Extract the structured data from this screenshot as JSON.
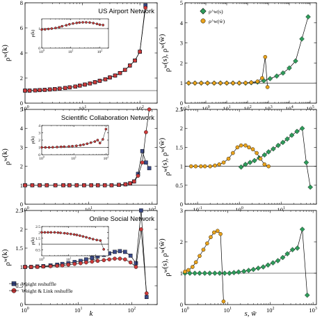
{
  "figure": {
    "x_axis_label_left": "k",
    "x_axis_label_right": "s, w̄",
    "legend_left": [
      {
        "label": "Weight reshuffle",
        "marker": "square",
        "color": "#3b4a86"
      },
      {
        "label": "Weight & Link reshuffle",
        "marker": "circle",
        "color": "#cc3a3a"
      }
    ],
    "legend_right": [
      {
        "label": "ρ^w(s)",
        "marker": "diamond",
        "color": "#2e9b5a"
      },
      {
        "label": "ρ^w(w̄)",
        "marker": "circle",
        "color": "#e8a21d"
      }
    ]
  },
  "chart_data": [
    {
      "type": "line",
      "row": 0,
      "col": 0,
      "title": "US Airport Network",
      "ylabel": "ρ^w(k)",
      "xlabel": "",
      "xscale": "log",
      "xlim": [
        1,
        200
      ],
      "xticks": [
        1,
        10,
        100
      ],
      "ylim": [
        0,
        8
      ],
      "yticks": [
        0,
        2,
        4,
        6,
        8
      ],
      "hline": 1,
      "inset": {
        "ylabel": "ρ(k)",
        "xscale": "log",
        "xlim": [
          1,
          200
        ],
        "xticks": [
          1,
          10,
          100
        ],
        "ylim": [
          0,
          1.5
        ],
        "yticks": [
          0,
          1
        ],
        "hline": 1,
        "series": [
          {
            "marker": "circle",
            "color": "#cc3a3a",
            "x": [
              1,
              1.3,
              1.7,
              2.2,
              3,
              4,
              5,
              7,
              9,
              12,
              16,
              20,
              26,
              34,
              45,
              60,
              80,
              100,
              130
            ],
            "y": [
              0.95,
              0.96,
              0.98,
              1.0,
              1.03,
              1.07,
              1.12,
              1.17,
              1.22,
              1.26,
              1.29,
              1.31,
              1.32,
              1.32,
              1.31,
              1.28,
              1.24,
              1.2,
              1.18
            ]
          }
        ]
      },
      "series": [
        {
          "name": "Weight reshuffle",
          "marker": "square",
          "color": "#3b4a86",
          "x": [
            1,
            1.2,
            1.5,
            1.8,
            2.2,
            2.7,
            3.3,
            4,
            5,
            6,
            7.5,
            9,
            11,
            13.5,
            16.5,
            20,
            25,
            30,
            37,
            45,
            55,
            67,
            82,
            100,
            125
          ],
          "y": [
            1.0,
            1.0,
            1.02,
            1.04,
            1.06,
            1.09,
            1.12,
            1.16,
            1.21,
            1.26,
            1.32,
            1.4,
            1.48,
            1.57,
            1.67,
            1.78,
            1.9,
            2.05,
            2.2,
            2.4,
            2.65,
            3.0,
            3.4,
            4.1,
            7.8
          ]
        },
        {
          "name": "Weight & Link reshuffle",
          "marker": "circle",
          "color": "#cc3a3a",
          "x": [
            1,
            1.2,
            1.5,
            1.8,
            2.2,
            2.7,
            3.3,
            4,
            5,
            6,
            7.5,
            9,
            11,
            13.5,
            16.5,
            20,
            25,
            30,
            37,
            45,
            55,
            67,
            82,
            100,
            125
          ],
          "y": [
            1.0,
            1.0,
            1.02,
            1.04,
            1.06,
            1.09,
            1.12,
            1.16,
            1.21,
            1.26,
            1.32,
            1.4,
            1.48,
            1.57,
            1.67,
            1.78,
            1.9,
            2.05,
            2.2,
            2.4,
            2.65,
            3.0,
            3.4,
            4.1,
            7.6
          ]
        }
      ]
    },
    {
      "type": "line",
      "row": 0,
      "col": 1,
      "title": "",
      "ylabel": "ρ^w(s), ρ^w(w̄)",
      "xlabel": "",
      "xscale": "log",
      "xlim": [
        0.1,
        200000
      ],
      "xticks": [
        0.1,
        1,
        10,
        100,
        1000,
        10000,
        100000
      ],
      "ylim": [
        0,
        5
      ],
      "yticks": [
        0,
        1,
        2,
        3,
        4,
        5
      ],
      "hline": 1,
      "series": [
        {
          "name": "ρ^w(s)",
          "marker": "diamond",
          "color": "#2e9b5a",
          "x": [
            0.15,
            0.3,
            0.6,
            1.2,
            2.5,
            5,
            10,
            20,
            40,
            80,
            150,
            300,
            600,
            1200,
            2500,
            5000,
            10000,
            20000,
            40000,
            80000
          ],
          "y": [
            1.0,
            1.0,
            1.0,
            1.0,
            1.0,
            1.0,
            1.0,
            1.0,
            1.0,
            1.0,
            1.02,
            1.05,
            1.12,
            1.22,
            1.35,
            1.5,
            1.75,
            2.1,
            3.2,
            4.3
          ]
        },
        {
          "name": "ρ^w(w̄)",
          "marker": "circle",
          "color": "#e8a21d",
          "x": [
            0.15,
            0.3,
            0.6,
            1.2,
            2.5,
            5,
            10,
            20,
            40,
            80,
            150,
            300,
            500,
            700,
            900
          ],
          "y": [
            1.0,
            1.0,
            1.0,
            1.0,
            1.0,
            1.0,
            1.0,
            1.0,
            1.0,
            1.01,
            1.03,
            1.08,
            1.25,
            2.3,
            0.8
          ]
        }
      ]
    },
    {
      "type": "line",
      "row": 1,
      "col": 0,
      "title": "Scientific Collaboration Network",
      "ylabel": "ρ^w(k)",
      "xlabel": "",
      "xscale": "log",
      "xlim": [
        1,
        120
      ],
      "xticks": [
        1,
        10,
        100
      ],
      "ylim": [
        0,
        5
      ],
      "yticks": [
        0,
        1,
        2,
        3,
        4,
        5
      ],
      "hline": 1,
      "inset": {
        "ylabel": "ρ(k)",
        "xscale": "log",
        "xlim": [
          1,
          120
        ],
        "xticks": [
          1,
          10,
          100
        ],
        "ylim": [
          0,
          4
        ],
        "yticks": [
          0,
          1,
          2,
          3,
          4
        ],
        "hline": 1,
        "series": [
          {
            "marker": "circle",
            "color": "#cc3a3a",
            "x": [
              1,
              1.3,
              1.7,
              2.2,
              3,
              4,
              5,
              7,
              9,
              12,
              16,
              20,
              26,
              34,
              45,
              55,
              65,
              80,
              100
            ],
            "y": [
              1.0,
              1.0,
              1.0,
              1.02,
              1.05,
              1.08,
              1.1,
              1.13,
              1.17,
              1.22,
              1.3,
              1.38,
              1.5,
              1.65,
              1.8,
              2.0,
              1.6,
              2.1,
              3.5
            ]
          }
        ]
      },
      "series": [
        {
          "name": "Weight reshuffle",
          "marker": "square",
          "color": "#3b4a86",
          "x": [
            1,
            1.3,
            1.7,
            2.2,
            3,
            4,
            5,
            6.5,
            8.5,
            11,
            14,
            18,
            23,
            30,
            38,
            45,
            52,
            60,
            70,
            80,
            90
          ],
          "y": [
            1.0,
            1.0,
            1.0,
            1.0,
            1.0,
            1.0,
            1.0,
            1.0,
            1.0,
            1.0,
            1.0,
            1.0,
            1.0,
            1.02,
            1.05,
            1.1,
            1.2,
            1.6,
            2.8,
            2.2,
            1.9
          ]
        },
        {
          "name": "Weight & Link reshuffle",
          "marker": "circle",
          "color": "#cc3a3a",
          "x": [
            1,
            1.3,
            1.7,
            2.2,
            3,
            4,
            5,
            6.5,
            8.5,
            11,
            14,
            18,
            23,
            30,
            38,
            45,
            52,
            60,
            70,
            80,
            90
          ],
          "y": [
            1.0,
            1.0,
            1.0,
            1.0,
            1.0,
            1.0,
            1.0,
            1.0,
            1.0,
            1.0,
            1.0,
            1.0,
            1.0,
            1.02,
            1.05,
            1.1,
            1.2,
            1.5,
            2.2,
            3.8,
            5.0
          ]
        }
      ]
    },
    {
      "type": "line",
      "row": 1,
      "col": 1,
      "title": "",
      "ylabel": "ρ^w(s), ρ^w(w̄)",
      "xlabel": "",
      "xscale": "log",
      "xlim": [
        0.05,
        70
      ],
      "xticks": [
        0.1,
        1,
        10
      ],
      "ylim": [
        0,
        2.5
      ],
      "yticks": [
        0,
        0.5,
        1,
        1.5,
        2,
        2.5
      ],
      "hline": 1,
      "series": [
        {
          "name": "ρ^w(s)",
          "marker": "diamond",
          "color": "#2e9b5a",
          "x": [
            1.1,
            1.4,
            1.8,
            2.3,
            3,
            4,
            5,
            6.5,
            8.5,
            11,
            14,
            18,
            24,
            32,
            40,
            50
          ],
          "y": [
            0.98,
            1.05,
            1.1,
            1.15,
            1.22,
            1.3,
            1.38,
            1.46,
            1.55,
            1.63,
            1.72,
            1.82,
            1.92,
            2.0,
            1.1,
            0.45
          ]
        },
        {
          "name": "ρ^w(w̄)",
          "marker": "circle",
          "color": "#e8a21d",
          "x": [
            0.07,
            0.09,
            0.12,
            0.15,
            0.2,
            0.26,
            0.33,
            0.42,
            0.55,
            0.7,
            0.9,
            1.1,
            1.4,
            1.7,
            2.1,
            2.6,
            3.2,
            4,
            5
          ],
          "y": [
            1.0,
            1.0,
            1.0,
            1.0,
            1.0,
            1.02,
            1.05,
            1.1,
            1.2,
            1.35,
            1.5,
            1.55,
            1.55,
            1.5,
            1.45,
            1.35,
            1.2,
            1.05,
            1.0
          ]
        }
      ]
    },
    {
      "type": "line",
      "row": 2,
      "col": 0,
      "title": "Online Social Network",
      "ylabel": "ρ^w(k)",
      "xlabel": "k",
      "xscale": "log",
      "xlim": [
        1,
        300
      ],
      "xticks": [
        1,
        10,
        100
      ],
      "ylim": [
        0,
        2.5
      ],
      "yticks": [
        0,
        0.5,
        1,
        1.5,
        2,
        2.5
      ],
      "hline": 1,
      "inset": {
        "ylabel": "ρ(k)",
        "xscale": "log",
        "xlim": [
          1,
          300
        ],
        "xticks": [
          1,
          10,
          100
        ],
        "ylim": [
          0,
          2.5
        ],
        "yticks": [
          0.5,
          1,
          1.5,
          2,
          2.5
        ],
        "hline": 1,
        "series": [
          {
            "marker": "circle",
            "color": "#cc3a3a",
            "x": [
              1,
              1.3,
              1.7,
              2.2,
              3,
              4,
              5,
              7,
              9,
              12,
              16,
              20,
              26,
              34,
              45,
              60,
              80,
              110,
              150,
              200
            ],
            "y": [
              2.0,
              2.0,
              2.0,
              2.0,
              2.0,
              1.98,
              1.96,
              1.93,
              1.9,
              1.86,
              1.82,
              1.78,
              1.72,
              1.65,
              1.58,
              1.5,
              1.42,
              1.35,
              1.3,
              0.55
            ]
          }
        ]
      },
      "series": [
        {
          "name": "Weight reshuffle",
          "marker": "square",
          "color": "#3b4a86",
          "x": [
            1,
            1.3,
            1.7,
            2.2,
            3,
            4,
            5,
            6.5,
            8.5,
            11,
            14,
            18,
            23,
            30,
            38,
            48,
            60,
            75,
            95,
            120,
            150,
            190
          ],
          "y": [
            1.0,
            1.0,
            1.01,
            1.02,
            1.04,
            1.06,
            1.08,
            1.1,
            1.13,
            1.16,
            1.2,
            1.24,
            1.28,
            1.32,
            1.36,
            1.4,
            1.42,
            1.4,
            1.3,
            1.1,
            2.5,
            0.2
          ]
        },
        {
          "name": "Weight & Link reshuffle",
          "marker": "circle",
          "color": "#cc3a3a",
          "x": [
            1,
            1.3,
            1.7,
            2.2,
            3,
            4,
            5,
            6.5,
            8.5,
            11,
            14,
            18,
            23,
            30,
            38,
            48,
            60,
            75,
            95,
            120,
            150,
            190
          ],
          "y": [
            1.0,
            1.0,
            1.0,
            1.01,
            1.02,
            1.03,
            1.04,
            1.06,
            1.08,
            1.1,
            1.12,
            1.14,
            1.16,
            1.18,
            1.2,
            1.22,
            1.22,
            1.2,
            1.12,
            1.0,
            2.0,
            0.3
          ]
        }
      ]
    },
    {
      "type": "line",
      "row": 2,
      "col": 1,
      "title": "",
      "ylabel": "ρ^w(s), ρ^w(w̄)",
      "xlabel": "s, w̄",
      "xscale": "log",
      "xlim": [
        1,
        1200
      ],
      "xticks": [
        1,
        10,
        100,
        1000
      ],
      "ylim": [
        0,
        3
      ],
      "yticks": [
        0,
        1,
        2,
        3
      ],
      "hline": 1,
      "series": [
        {
          "name": "ρ^w(s)",
          "marker": "diamond",
          "color": "#2e9b5a",
          "x": [
            1,
            1.3,
            1.7,
            2.2,
            2.9,
            3.8,
            5,
            6.5,
            8.5,
            11,
            14,
            18,
            24,
            31,
            40,
            52,
            68,
            88,
            115,
            150,
            195,
            250,
            330,
            430,
            560,
            730
          ],
          "y": [
            1.0,
            1.0,
            1.0,
            1.0,
            1.0,
            1.0,
            1.0,
            1.0,
            1.0,
            1.0,
            1.02,
            1.04,
            1.06,
            1.09,
            1.12,
            1.16,
            1.2,
            1.26,
            1.33,
            1.4,
            1.5,
            1.62,
            1.75,
            1.8,
            2.4,
            0.3
          ]
        },
        {
          "name": "ρ^w(w̄)",
          "marker": "circle",
          "color": "#e8a21d",
          "x": [
            1,
            1.2,
            1.5,
            1.8,
            2.2,
            2.7,
            3.3,
            4,
            4.8,
            5.8,
            6.8,
            8
          ],
          "y": [
            1.05,
            1.1,
            1.2,
            1.35,
            1.55,
            1.75,
            1.95,
            2.15,
            2.3,
            2.35,
            2.25,
            0.1
          ]
        }
      ]
    }
  ]
}
